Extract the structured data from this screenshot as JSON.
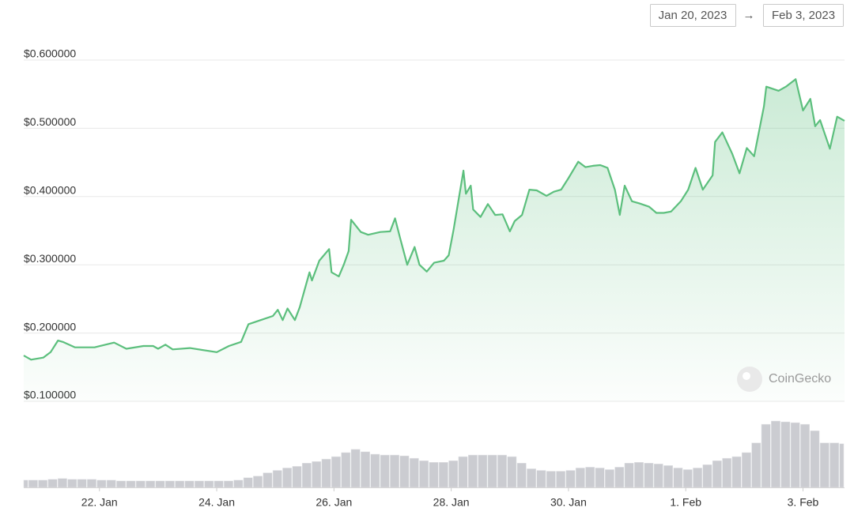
{
  "chart_data": {
    "type": "line",
    "range_start": "Jan 20, 2023",
    "range_separator": "→",
    "range_end": "Feb 3, 2023",
    "watermark": "CoinGecko",
    "color": "#5cbf7d",
    "x": [
      0,
      3,
      8,
      11,
      14,
      16,
      21,
      29,
      37,
      42,
      49,
      53,
      55,
      58,
      61,
      68,
      79,
      84,
      89,
      92,
      97,
      102,
      104,
      106,
      108,
      111,
      113,
      117,
      118,
      121,
      125,
      126,
      129,
      131,
      133,
      134,
      138,
      141,
      146,
      150,
      152,
      154,
      157,
      160,
      162,
      165,
      168,
      172,
      174,
      176,
      180,
      181,
      183,
      184,
      187,
      190,
      193,
      196,
      199,
      201,
      204,
      207,
      210,
      214,
      217,
      220,
      223,
      227,
      230,
      233,
      236,
      239,
      242,
      244,
      246,
      249,
      252,
      256,
      259,
      262,
      265,
      269,
      272,
      275,
      278,
      282,
      283,
      286,
      290,
      293,
      296,
      299,
      303,
      304,
      309,
      312,
      316,
      319,
      322,
      324,
      326,
      328,
      330,
      333,
      336
    ],
    "values": [
      0.167,
      0.161,
      0.164,
      0.172,
      0.189,
      0.187,
      0.179,
      0.179,
      0.186,
      0.177,
      0.181,
      0.181,
      0.177,
      0.183,
      0.176,
      0.178,
      0.172,
      0.181,
      0.187,
      0.213,
      0.219,
      0.225,
      0.234,
      0.219,
      0.236,
      0.219,
      0.238,
      0.289,
      0.277,
      0.306,
      0.323,
      0.289,
      0.283,
      0.3,
      0.32,
      0.366,
      0.348,
      0.344,
      0.348,
      0.349,
      0.368,
      0.34,
      0.3,
      0.326,
      0.3,
      0.29,
      0.303,
      0.306,
      0.314,
      0.352,
      0.438,
      0.404,
      0.416,
      0.381,
      0.37,
      0.389,
      0.373,
      0.374,
      0.349,
      0.364,
      0.373,
      0.41,
      0.409,
      0.401,
      0.407,
      0.41,
      0.427,
      0.451,
      0.443,
      0.445,
      0.446,
      0.442,
      0.41,
      0.373,
      0.416,
      0.393,
      0.39,
      0.385,
      0.376,
      0.376,
      0.378,
      0.393,
      0.41,
      0.442,
      0.41,
      0.431,
      0.48,
      0.494,
      0.463,
      0.434,
      0.471,
      0.459,
      0.532,
      0.561,
      0.555,
      0.561,
      0.572,
      0.526,
      0.543,
      0.503,
      0.512,
      0.491,
      0.47,
      0.517,
      0.511
    ],
    "xlim": [
      0,
      336
    ],
    "xticks": [
      {
        "value": 31,
        "label": "22. Jan"
      },
      {
        "value": 79,
        "label": "24. Jan"
      },
      {
        "value": 127,
        "label": "26. Jan"
      },
      {
        "value": 175,
        "label": "28. Jan"
      },
      {
        "value": 223,
        "label": "30. Jan"
      },
      {
        "value": 271,
        "label": "1. Feb"
      },
      {
        "value": 319,
        "label": "3. Feb"
      }
    ],
    "ylim": [
      0.1,
      0.62
    ],
    "yticks": [
      {
        "value": 0.1,
        "label": "$0.100000"
      },
      {
        "value": 0.2,
        "label": "$0.200000"
      },
      {
        "value": 0.3,
        "label": "$0.300000"
      },
      {
        "value": 0.4,
        "label": "$0.400000"
      },
      {
        "value": 0.5,
        "label": "$0.500000"
      },
      {
        "value": 0.6,
        "label": "$0.600000"
      }
    ],
    "grid": true,
    "volume": {
      "color": "#cbccd1",
      "x": [
        0,
        4,
        8,
        12,
        16,
        20,
        24,
        28,
        32,
        36,
        40,
        44,
        48,
        52,
        56,
        60,
        64,
        68,
        72,
        76,
        80,
        84,
        88,
        92,
        96,
        100,
        104,
        108,
        112,
        116,
        120,
        124,
        128,
        132,
        136,
        140,
        144,
        148,
        152,
        156,
        160,
        164,
        168,
        172,
        176,
        180,
        184,
        188,
        192,
        196,
        200,
        204,
        208,
        212,
        216,
        220,
        224,
        228,
        232,
        236,
        240,
        244,
        248,
        252,
        256,
        260,
        264,
        268,
        272,
        276,
        280,
        284,
        288,
        292,
        296,
        300,
        304,
        308,
        312,
        316,
        320,
        324,
        328,
        332,
        336
      ],
      "values": [
        9,
        9,
        9,
        10,
        11,
        10,
        10,
        10,
        9,
        9,
        8,
        8,
        8,
        8,
        8,
        8,
        8,
        8,
        8,
        8,
        8,
        8,
        9,
        12,
        14,
        18,
        21,
        24,
        26,
        30,
        32,
        35,
        38,
        43,
        47,
        44,
        41,
        40,
        40,
        39,
        36,
        33,
        31,
        31,
        33,
        38,
        40,
        40,
        40,
        40,
        38,
        30,
        23,
        21,
        20,
        20,
        21,
        24,
        25,
        24,
        22,
        25,
        30,
        31,
        30,
        29,
        27,
        24,
        22,
        24,
        28,
        33,
        36,
        38,
        43,
        55,
        78,
        82,
        81,
        80,
        78,
        70,
        55,
        55,
        54
      ]
    }
  }
}
